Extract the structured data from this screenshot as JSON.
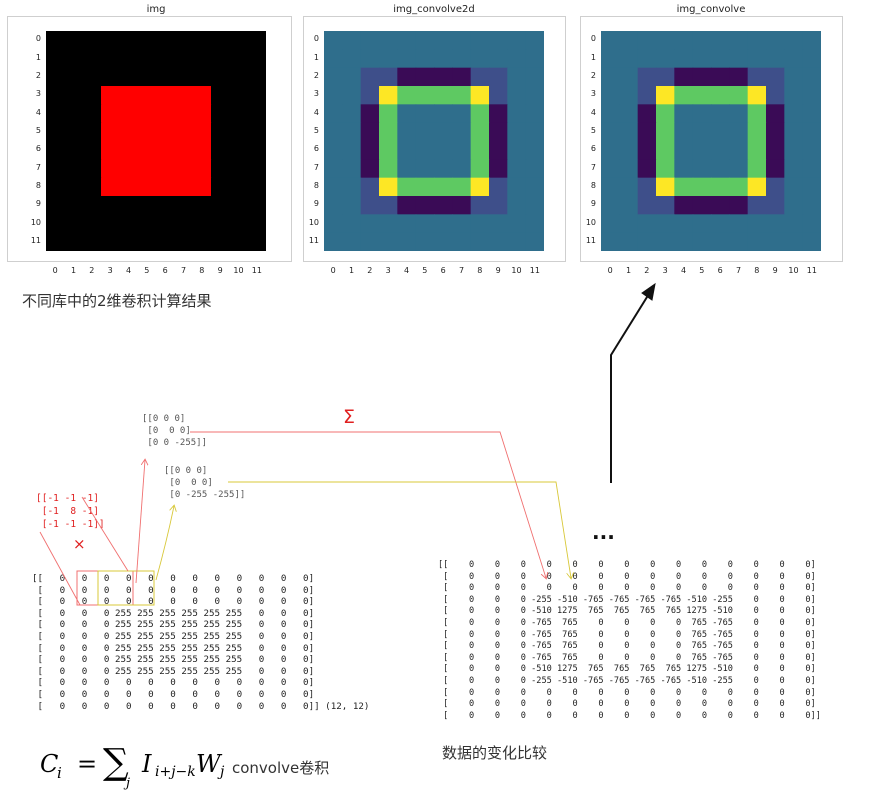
{
  "panels": [
    {
      "id": "img",
      "title": "img",
      "kind": "img"
    },
    {
      "id": "img_convolve2d",
      "title": "img_convolve2d",
      "kind": "conv"
    },
    {
      "id": "img_convolve",
      "title": "img_convolve",
      "kind": "conv"
    }
  ],
  "ticks": [
    "0",
    "1",
    "2",
    "3",
    "4",
    "5",
    "6",
    "7",
    "8",
    "9",
    "10",
    "11"
  ],
  "colors": {
    "black": "#000000",
    "red": "#ff0000",
    "teal": "#2f6e8c",
    "dark_purple": "#3a0b56",
    "slate_blue": "#3e4f8a",
    "green": "#5ec962",
    "yellow": "#fde725",
    "red_line": "#f07070",
    "yellow_line": "#d8c83a"
  },
  "caption_top": "不同库中的2维卷积计算结果",
  "caption_bottom": "数据的变化比较",
  "kernel_label": "[[-1 -1 -1]\n [-1  8 -1]\n [-1 -1 -1]]",
  "multiply_symbol": "×",
  "sigma_symbol": "Σ",
  "ellipsis": "...",
  "patch1_label": "[[0 0 0]\n [0  0 0]\n [0 0 -255]]",
  "patch2_label": "[[0 0 0]\n [0  0 0]\n [0 -255 -255]]",
  "input_matrix": [
    [
      0,
      0,
      0,
      0,
      0,
      0,
      0,
      0,
      0,
      0,
      0,
      0
    ],
    [
      0,
      0,
      0,
      0,
      0,
      0,
      0,
      0,
      0,
      0,
      0,
      0
    ],
    [
      0,
      0,
      0,
      0,
      0,
      0,
      0,
      0,
      0,
      0,
      0,
      0
    ],
    [
      0,
      0,
      0,
      255,
      255,
      255,
      255,
      255,
      255,
      0,
      0,
      0
    ],
    [
      0,
      0,
      0,
      255,
      255,
      255,
      255,
      255,
      255,
      0,
      0,
      0
    ],
    [
      0,
      0,
      0,
      255,
      255,
      255,
      255,
      255,
      255,
      0,
      0,
      0
    ],
    [
      0,
      0,
      0,
      255,
      255,
      255,
      255,
      255,
      255,
      0,
      0,
      0
    ],
    [
      0,
      0,
      0,
      255,
      255,
      255,
      255,
      255,
      255,
      0,
      0,
      0
    ],
    [
      0,
      0,
      0,
      255,
      255,
      255,
      255,
      255,
      255,
      0,
      0,
      0
    ],
    [
      0,
      0,
      0,
      0,
      0,
      0,
      0,
      0,
      0,
      0,
      0,
      0
    ],
    [
      0,
      0,
      0,
      0,
      0,
      0,
      0,
      0,
      0,
      0,
      0,
      0
    ],
    [
      0,
      0,
      0,
      0,
      0,
      0,
      0,
      0,
      0,
      0,
      0,
      0
    ]
  ],
  "input_shape": "(12, 12)",
  "output_matrix": [
    [
      0,
      0,
      0,
      0,
      0,
      0,
      0,
      0,
      0,
      0,
      0,
      0,
      0,
      0
    ],
    [
      0,
      0,
      0,
      0,
      0,
      0,
      0,
      0,
      0,
      0,
      0,
      0,
      0,
      0
    ],
    [
      0,
      0,
      0,
      0,
      0,
      0,
      0,
      0,
      0,
      0,
      0,
      0,
      0,
      0
    ],
    [
      0,
      0,
      0,
      -255,
      -510,
      -765,
      -765,
      -765,
      -765,
      -510,
      -255,
      0,
      0,
      0
    ],
    [
      0,
      0,
      0,
      -510,
      1275,
      765,
      765,
      765,
      765,
      1275,
      -510,
      0,
      0,
      0
    ],
    [
      0,
      0,
      0,
      -765,
      765,
      0,
      0,
      0,
      0,
      765,
      -765,
      0,
      0,
      0
    ],
    [
      0,
      0,
      0,
      -765,
      765,
      0,
      0,
      0,
      0,
      765,
      -765,
      0,
      0,
      0
    ],
    [
      0,
      0,
      0,
      -765,
      765,
      0,
      0,
      0,
      0,
      765,
      -765,
      0,
      0,
      0
    ],
    [
      0,
      0,
      0,
      -765,
      765,
      0,
      0,
      0,
      0,
      765,
      -765,
      0,
      0,
      0
    ],
    [
      0,
      0,
      0,
      -510,
      1275,
      765,
      765,
      765,
      765,
      1275,
      -510,
      0,
      0,
      0
    ],
    [
      0,
      0,
      0,
      -255,
      -510,
      -765,
      -765,
      -765,
      -765,
      -510,
      -255,
      0,
      0,
      0
    ],
    [
      0,
      0,
      0,
      0,
      0,
      0,
      0,
      0,
      0,
      0,
      0,
      0,
      0,
      0
    ],
    [
      0,
      0,
      0,
      0,
      0,
      0,
      0,
      0,
      0,
      0,
      0,
      0,
      0,
      0
    ],
    [
      0,
      0,
      0,
      0,
      0,
      0,
      0,
      0,
      0,
      0,
      0,
      0,
      0,
      0
    ]
  ],
  "formula": {
    "lhs": "C",
    "lhs_sub": "i",
    "equals": "=",
    "sum": "∑",
    "sum_sub": "j",
    "term1": "I",
    "term1_sub": "i+j−k",
    "term2": "W",
    "term2_sub": "j",
    "label": "convolve卷积"
  }
}
